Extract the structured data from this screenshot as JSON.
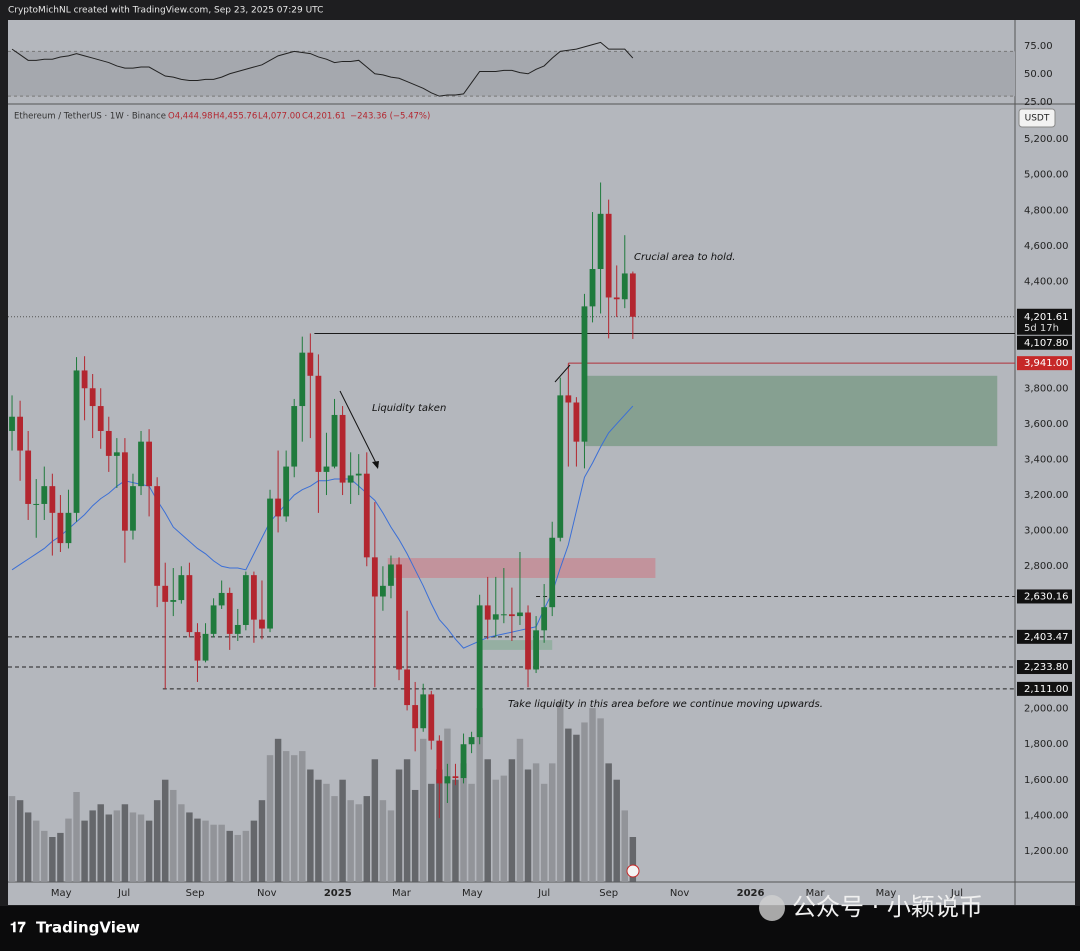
{
  "header": "CryptoMichNL created with TradingView.com, Sep 23, 2025 07:29 UTC",
  "legend": {
    "symbol": "Ethereum / TetherUS · 1W · Binance",
    "open": "O4,444.98",
    "high": "H4,455.76",
    "low": "L4,077.00",
    "close": "C4,201.61",
    "change": "−243.36 (−5.47%)"
  },
  "currency": "USDT",
  "annotations": {
    "crucial": "Crucial area to hold.",
    "liquidity": "Liquidity taken",
    "take": "Take liquidity in this area before we continue moving upwards."
  },
  "footer": {
    "brand": "TradingView",
    "watermark": "公众号 · 小颖说币"
  },
  "chart_data": {
    "type": "candlestick",
    "up_color": "#1f7a3c",
    "down_color": "#b3262f",
    "ma_color": "#3b6fd6",
    "volume_up_color": "#8e9095",
    "volume_down_color": "#5c5e62",
    "xlim": [
      -0.5,
      124.4
    ],
    "xticks": [
      {
        "value": 6.1,
        "label": "May"
      },
      {
        "value": 13.9,
        "label": "Jul"
      },
      {
        "value": 22.7,
        "label": "Sep"
      },
      {
        "value": 31.6,
        "label": "Nov"
      },
      {
        "value": 40.4,
        "label": "2025"
      },
      {
        "value": 48.3,
        "label": "Mar"
      },
      {
        "value": 57.1,
        "label": "May"
      },
      {
        "value": 66.0,
        "label": "Jul"
      },
      {
        "value": 74.0,
        "label": "Sep"
      },
      {
        "value": 82.8,
        "label": "Nov"
      },
      {
        "value": 91.6,
        "label": "2026"
      },
      {
        "value": 99.6,
        "label": "Mar"
      },
      {
        "value": 108.4,
        "label": "May"
      },
      {
        "value": 117.2,
        "label": "Jul"
      }
    ],
    "ylim": [
      1026,
      5397
    ],
    "yticks": [
      {
        "value": 5200,
        "label": "5,200.00"
      },
      {
        "value": 5000,
        "label": "5,000.00"
      },
      {
        "value": 4800,
        "label": "4,800.00"
      },
      {
        "value": 4600,
        "label": "4,600.00"
      },
      {
        "value": 4400,
        "label": "4,400.00"
      },
      {
        "value": 3800,
        "label": "3,800.00"
      },
      {
        "value": 3600,
        "label": "3,600.00"
      },
      {
        "value": 3400,
        "label": "3,400.00"
      },
      {
        "value": 3200,
        "label": "3,200.00"
      },
      {
        "value": 3000,
        "label": "3,000.00"
      },
      {
        "value": 2800,
        "label": "2,800.00"
      },
      {
        "value": 2000,
        "label": "2,000.00"
      },
      {
        "value": 1800,
        "label": "1,800.00"
      },
      {
        "value": 1600,
        "label": "1,600.00"
      },
      {
        "value": 1400,
        "label": "1,400.00"
      },
      {
        "value": 1200,
        "label": "1,200.00"
      }
    ],
    "open": [
      3560,
      3640,
      3450,
      3150,
      3150,
      3250,
      3100,
      2930,
      3100,
      3900,
      3800,
      3700,
      3560,
      3420,
      3440,
      3000,
      3250,
      3500,
      3250,
      2690,
      2600,
      2610,
      2750,
      2430,
      2270,
      2420,
      2580,
      2650,
      2420,
      2470,
      2750,
      2500,
      2450,
      3180,
      3080,
      3360,
      3700,
      4000,
      3870,
      3330,
      3360,
      3650,
      3270,
      3310,
      3320,
      2850,
      2630,
      2690,
      2810,
      2220,
      2020,
      1890,
      2080,
      1820,
      1580,
      1620,
      1610,
      1800,
      1840,
      2580,
      2500,
      2530,
      2530,
      2520,
      2540,
      2220,
      2440,
      2570,
      2960,
      3760,
      3720,
      3500,
      4260,
      4470,
      4780,
      4310,
      4300,
      4444.98
    ],
    "high": [
      3760,
      3730,
      3560,
      3290,
      3360,
      3320,
      3200,
      3230,
      3975,
      3980,
      3880,
      3800,
      3640,
      3520,
      3520,
      3320,
      3560,
      3570,
      3300,
      2820,
      2790,
      2800,
      2820,
      2480,
      2480,
      2620,
      2720,
      2680,
      2560,
      2770,
      2770,
      2720,
      3230,
      3450,
      3450,
      3740,
      4090,
      4108,
      3990,
      3550,
      3740,
      3700,
      3440,
      3430,
      3440,
      3160,
      2800,
      2860,
      2850,
      2550,
      2150,
      2140,
      2100,
      1850,
      1690,
      1690,
      1860,
      1870,
      2640,
      2740,
      2740,
      2790,
      2680,
      2880,
      2580,
      2520,
      2700,
      3050,
      3860,
      3940,
      3750,
      4330,
      4790,
      4956,
      4860,
      4490,
      4660,
      4455.76
    ],
    "low": [
      3450,
      3280,
      3060,
      2960,
      3060,
      2860,
      2880,
      2900,
      3050,
      3620,
      3520,
      3460,
      3330,
      3240,
      2820,
      2950,
      3200,
      3080,
      2570,
      2111,
      2520,
      2590,
      2400,
      2150,
      2260,
      2400,
      2560,
      2330,
      2380,
      2440,
      2370,
      2390,
      2430,
      2990,
      3050,
      3300,
      3500,
      3520,
      3100,
      3200,
      3350,
      3200,
      3150,
      3200,
      2800,
      2120,
      2550,
      2620,
      2160,
      1990,
      1760,
      1870,
      1770,
      1385,
      1470,
      1570,
      1580,
      1750,
      1800,
      2390,
      2400,
      2480,
      2380,
      2470,
      2120,
      2200,
      2370,
      2520,
      2940,
      3360,
      3360,
      3350,
      4170,
      4220,
      4080,
      4200,
      4250,
      4077
    ],
    "close": [
      3640,
      3450,
      3150,
      3150,
      3250,
      3100,
      2930,
      3100,
      3900,
      3800,
      3700,
      3560,
      3420,
      3440,
      3000,
      3250,
      3500,
      3250,
      2690,
      2600,
      2610,
      2750,
      2430,
      2270,
      2420,
      2580,
      2650,
      2420,
      2470,
      2750,
      2500,
      2450,
      3180,
      3080,
      3360,
      3700,
      4000,
      3870,
      3330,
      3360,
      3650,
      3270,
      3310,
      3320,
      2850,
      2630,
      2690,
      2810,
      2220,
      2020,
      1890,
      2080,
      1820,
      1580,
      1620,
      1610,
      1800,
      1840,
      2580,
      2500,
      2530,
      2530,
      2520,
      2540,
      2220,
      2440,
      2570,
      2960,
      3760,
      3720,
      3500,
      4260,
      4470,
      4780,
      4310,
      4300,
      4444.98,
      4201.61
    ],
    "volume": [
      42,
      40,
      34,
      30,
      25,
      22,
      24,
      31,
      44,
      30,
      35,
      38,
      33,
      35,
      38,
      34,
      33,
      30,
      40,
      50,
      45,
      38,
      34,
      31,
      30,
      28,
      28,
      25,
      23,
      25,
      30,
      40,
      62,
      70,
      64,
      62,
      64,
      55,
      50,
      48,
      42,
      50,
      40,
      38,
      42,
      60,
      40,
      35,
      55,
      60,
      45,
      70,
      48,
      55,
      75,
      50,
      58,
      48,
      85,
      60,
      50,
      52,
      60,
      70,
      55,
      58,
      48,
      58,
      88,
      75,
      72,
      78,
      85,
      80,
      58,
      50,
      35,
      22
    ],
    "ma": [
      2780,
      2810,
      2840,
      2870,
      2900,
      2940,
      2970,
      3010,
      3050,
      3090,
      3140,
      3180,
      3210,
      3250,
      3280,
      3270,
      3260,
      3250,
      3170,
      3100,
      3020,
      2980,
      2940,
      2900,
      2870,
      2830,
      2800,
      2790,
      2790,
      2780,
      2870,
      2960,
      3050,
      3100,
      3150,
      3200,
      3230,
      3250,
      3280,
      3280,
      3290,
      3290,
      3290,
      3250,
      3210,
      3170,
      3100,
      3020,
      2950,
      2870,
      2780,
      2690,
      2590,
      2500,
      2450,
      2390,
      2340,
      2360,
      2380,
      2400,
      2410,
      2420,
      2430,
      2440,
      2450,
      2460,
      2560,
      2650,
      2790,
      2920,
      3110,
      3300,
      3380,
      3470,
      3550,
      3600,
      3650,
      3700
    ],
    "rsi": [
      72,
      67,
      62,
      62,
      63,
      63,
      65,
      66,
      68,
      66,
      64,
      62,
      60,
      57,
      55,
      55,
      56,
      56,
      52,
      48,
      47,
      45,
      44,
      44,
      45,
      45,
      47,
      50,
      52,
      54,
      56,
      58,
      62,
      66,
      68,
      70,
      69,
      68,
      65,
      63,
      60,
      61,
      61,
      62,
      56,
      50,
      49,
      47,
      46,
      43,
      40,
      37,
      33,
      30,
      31,
      31,
      32,
      42,
      52,
      52,
      52,
      53,
      53,
      51,
      50,
      54,
      57,
      64,
      70,
      71,
      72,
      74,
      76,
      78,
      72,
      72,
      72,
      64
    ],
    "rsi_ylim": [
      23,
      98
    ],
    "rsi_yticks": [
      {
        "value": 75,
        "label": "75.00"
      },
      {
        "value": 50,
        "label": "50.00"
      },
      {
        "value": 25,
        "label": "25.00"
      }
    ],
    "rsi_band": [
      30,
      70
    ],
    "zones": [
      {
        "from": 3475,
        "to": 3870,
        "start": 71.1,
        "end": 122.2,
        "color": "#7e9c89"
      },
      {
        "from": 2734,
        "to": 2846,
        "start": 46.6,
        "end": 79.8,
        "color": "#c48d96"
      },
      {
        "from": 2330,
        "to": 2385,
        "start": 57.7,
        "end": 67.0,
        "color": "#8fae9e"
      }
    ],
    "last_price": {
      "value": 4201.61,
      "label": "4,201.61",
      "countdown": "5d 17h"
    },
    "levels": [
      {
        "value": 4107.8,
        "label": "4,107.80",
        "start": 37.5,
        "style": "solid",
        "color": "#1a1a1a",
        "tag": "#111111"
      },
      {
        "value": 3941,
        "label": "3,941.00",
        "start": 69,
        "style": "solid",
        "color": "#b0303a",
        "tag": "#c62828"
      },
      {
        "value": 2630.16,
        "label": "2,630.16",
        "start": 65,
        "style": "dashed",
        "color": "#222222",
        "tag": "#111111"
      },
      {
        "value": 2403.47,
        "label": "2,403.47",
        "start": -0.5,
        "style": "dashed",
        "color": "#222222",
        "tag": "#111111"
      },
      {
        "value": 2233.8,
        "label": "2,233.80",
        "start": -0.5,
        "style": "dashed",
        "color": "#222222",
        "tag": "#111111"
      },
      {
        "value": 2111,
        "label": "2,111.00",
        "start": 18.7,
        "style": "dashed",
        "color": "#222222",
        "tag": "#111111"
      }
    ]
  }
}
